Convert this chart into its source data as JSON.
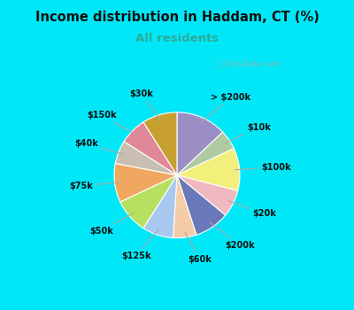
{
  "title": "Income distribution in Haddam, CT (%)",
  "subtitle": "All residents",
  "labels": [
    "> $200k",
    "$10k",
    "$100k",
    "$20k",
    "$200k",
    "$60k",
    "$125k",
    "$50k",
    "$75k",
    "$40k",
    "$150k",
    "$30k"
  ],
  "values": [
    13,
    5,
    11,
    7,
    9,
    6,
    8,
    9,
    10,
    6,
    7,
    9
  ],
  "colors": [
    "#9b8ec4",
    "#afc9a0",
    "#f2f07a",
    "#f0b8c0",
    "#6878b8",
    "#f5cca8",
    "#a8c8f0",
    "#b8e060",
    "#f0a860",
    "#c8bfb0",
    "#e08898",
    "#c8a030"
  ],
  "bg_color": "#00e8f8",
  "chart_bg": "#e0f5ea",
  "title_color": "#111111",
  "subtitle_color": "#2eaa98",
  "title_fontsize": 10.5,
  "subtitle_fontsize": 9.5,
  "label_fontsize": 7,
  "watermark_color": "#aaaaaa",
  "line_color": "#aaaaaa"
}
